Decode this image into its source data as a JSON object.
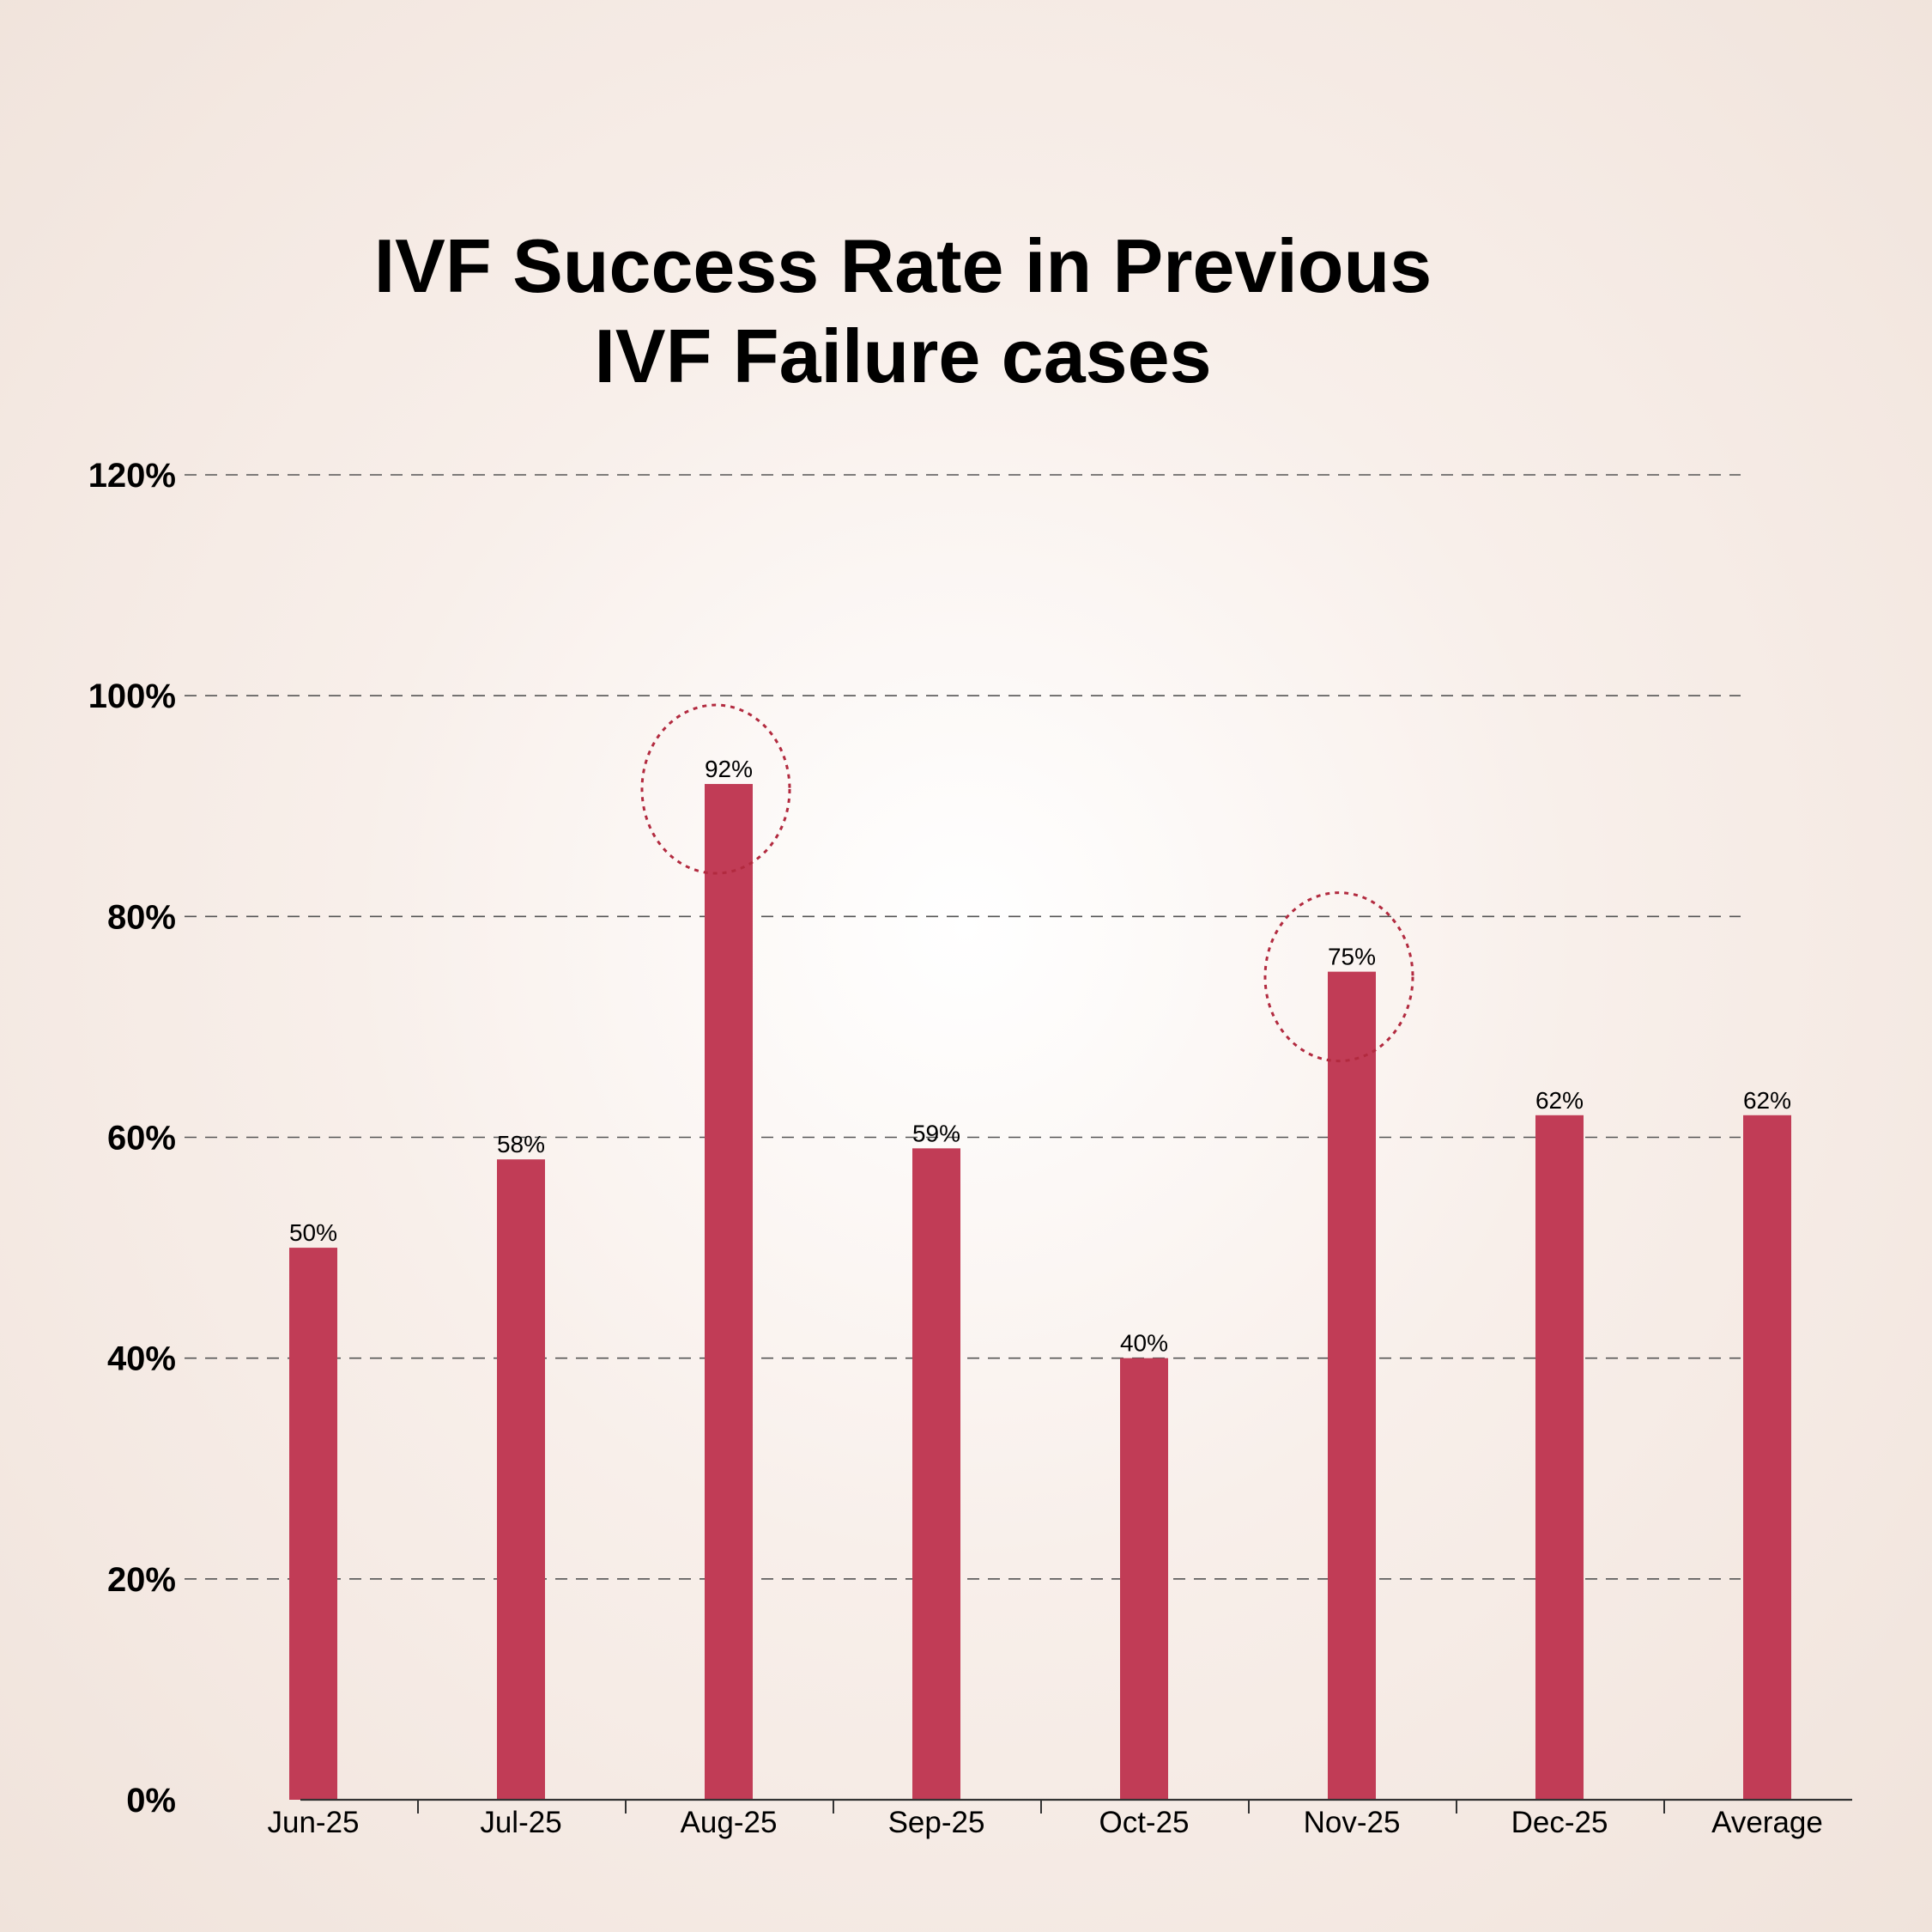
{
  "chart_data": {
    "type": "bar",
    "title_lines": [
      "IVF Success Rate in Previous",
      "IVF Failure cases"
    ],
    "categories": [
      "Jun-25",
      "Jul-25",
      "Aug-25",
      "Sep-25",
      "Oct-25",
      "Nov-25",
      "Dec-25",
      "Average"
    ],
    "values": [
      50,
      58,
      92,
      59,
      40,
      75,
      62,
      62
    ],
    "data_labels": [
      "50%",
      "58%",
      "92%",
      "59%",
      "40%",
      "75%",
      "62%",
      "62%"
    ],
    "y_ticks": [
      "0%",
      "20%",
      "40%",
      "60%",
      "80%",
      "100%",
      "120%"
    ],
    "ylim": [
      0,
      120
    ],
    "y_step": 20,
    "grid": "horizontal dashed",
    "legend": "none",
    "highlighted_categories": [
      "Aug-25",
      "Nov-25"
    ],
    "colors": {
      "bar": "#c13c56",
      "highlight_circle": "#b22a3f",
      "grid": "#555555",
      "axis": "#333333"
    }
  }
}
